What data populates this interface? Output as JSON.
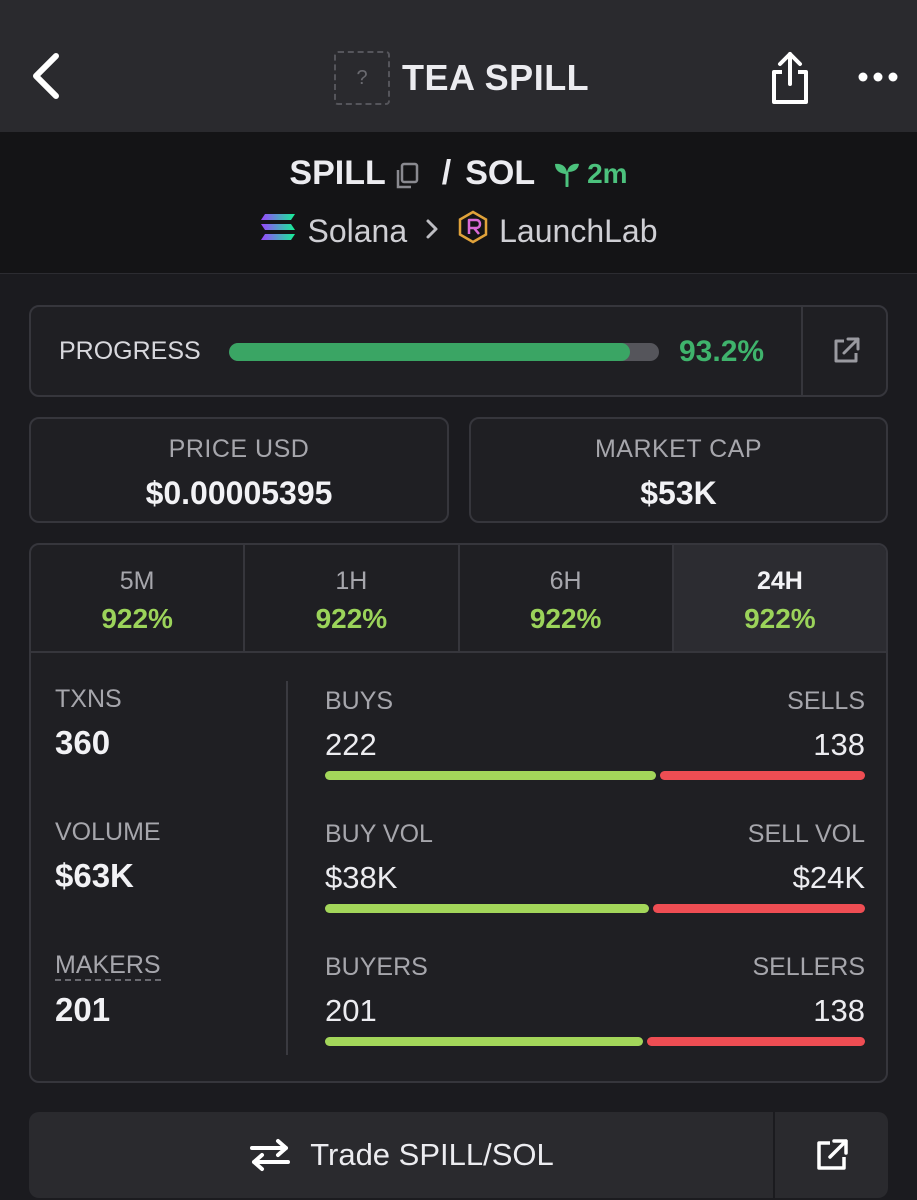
{
  "header": {
    "title": "TEA SPILL",
    "logo_placeholder": "?"
  },
  "pair": {
    "base": "SPILL",
    "separator": "/",
    "quote": "SOL",
    "age": "2m",
    "chain": "Solana",
    "dex": "LaunchLab"
  },
  "progress": {
    "label": "PROGRESS",
    "value_text": "93.2%",
    "fraction": 0.932
  },
  "price": {
    "label": "PRICE USD",
    "value": "$0.00005395"
  },
  "market_cap": {
    "label": "MARKET CAP",
    "value": "$53K"
  },
  "tabs": [
    {
      "label": "5M",
      "value": "922%"
    },
    {
      "label": "1H",
      "value": "922%"
    },
    {
      "label": "6H",
      "value": "922%"
    },
    {
      "label": "24H",
      "value": "922%",
      "active": true
    }
  ],
  "stats": {
    "txns": {
      "label": "TXNS",
      "value": "360"
    },
    "volume": {
      "label": "VOLUME",
      "value": "$63K"
    },
    "makers": {
      "label": "MAKERS",
      "value": "201"
    }
  },
  "breakdown": [
    {
      "left_label": "BUYS",
      "left_value": "222",
      "right_label": "SELLS",
      "right_value": "138",
      "buy_fraction": 0.617
    },
    {
      "left_label": "BUY VOL",
      "left_value": "$38K",
      "right_label": "SELL VOL",
      "right_value": "$24K",
      "buy_fraction": 0.605
    },
    {
      "left_label": "BUYERS",
      "left_value": "201",
      "right_label": "SELLERS",
      "right_value": "138",
      "buy_fraction": 0.593
    }
  ],
  "trade": {
    "label": "Trade SPILL/SOL"
  },
  "colors": {
    "accent_green": "#3fb36c",
    "change_green": "#9bd35a",
    "buy_bar": "#a3d65a",
    "sell_bar": "#ee4d53"
  },
  "icons": [
    "back-chevron-icon",
    "share-icon",
    "more-icon",
    "copy-icon",
    "sprout-icon",
    "solana-icon",
    "chevron-right-icon",
    "launchlab-icon",
    "external-link-icon",
    "swap-arrows-icon"
  ]
}
